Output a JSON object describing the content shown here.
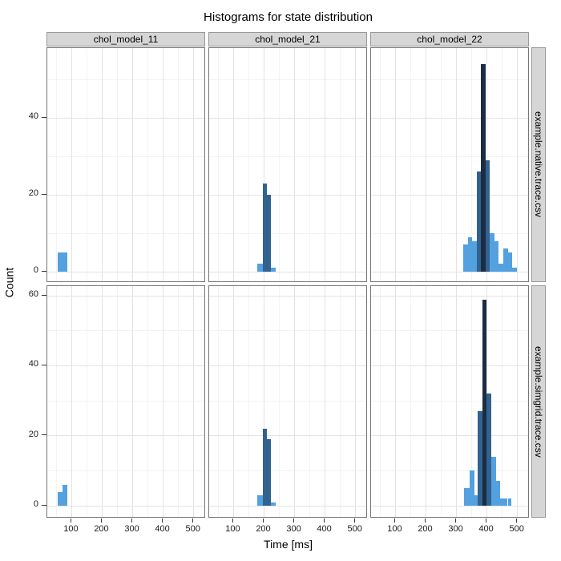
{
  "chart_data": {
    "type": "histogram",
    "title": "Histograms for state distribution",
    "xlabel": "Time [ms]",
    "ylabel": "Count",
    "col_facets": [
      "chol_model_11",
      "chol_model_21",
      "chol_model_22"
    ],
    "row_facets": [
      "example.native.trace.csv",
      "example.simgrid.trace.csv"
    ],
    "x_domain": [
      20,
      535
    ],
    "x_ticks": [
      100,
      200,
      300,
      400,
      500
    ],
    "x_minor_ticks": [
      50,
      150,
      250,
      350,
      450
    ],
    "rows": [
      {
        "y_domain": [
          -2.5,
          58.2
        ],
        "y_ticks": [
          0,
          20,
          40
        ],
        "y_minor_ticks": [
          10,
          30,
          50
        ]
      },
      {
        "y_domain": [
          -3.2,
          62.8
        ],
        "y_ticks": [
          0,
          20,
          40,
          60
        ],
        "y_minor_ticks": [
          10,
          30,
          50
        ]
      }
    ],
    "colors": {
      "light": "#54a1e0",
      "dark": "#32628f",
      "navy": "#1b2d42",
      "grid_major": "#e3e3e3",
      "grid_minor": "#f3f3f3",
      "panel_border": "#767676",
      "strip_fill": "#d6d6d6",
      "strip_border": "#999999",
      "tick": "#333333"
    },
    "panels": [
      {
        "row": 0,
        "col": 0,
        "bars": [
          {
            "x0": 54,
            "x1": 69,
            "count": 5,
            "color": "light"
          },
          {
            "x0": 69,
            "x1": 85,
            "count": 5,
            "color": "light"
          }
        ]
      },
      {
        "row": 0,
        "col": 1,
        "bars": [
          {
            "x0": 177,
            "x1": 195,
            "count": 2,
            "color": "light"
          },
          {
            "x0": 195,
            "x1": 210,
            "count": 23,
            "color": "dark"
          },
          {
            "x0": 210,
            "x1": 223,
            "count": 20,
            "color": "dark"
          },
          {
            "x0": 223,
            "x1": 239,
            "count": 1,
            "color": "light"
          }
        ]
      },
      {
        "row": 0,
        "col": 2,
        "bars": [
          {
            "x0": 322,
            "x1": 337,
            "count": 7,
            "color": "light"
          },
          {
            "x0": 337,
            "x1": 351,
            "count": 9,
            "color": "light"
          },
          {
            "x0": 351,
            "x1": 366,
            "count": 8,
            "color": "light"
          },
          {
            "x0": 366,
            "x1": 380,
            "count": 26,
            "color": "dark"
          },
          {
            "x0": 380,
            "x1": 395,
            "count": 54,
            "color": "navy"
          },
          {
            "x0": 395,
            "x1": 410,
            "count": 29,
            "color": "dark"
          },
          {
            "x0": 410,
            "x1": 424,
            "count": 10,
            "color": "light"
          },
          {
            "x0": 424,
            "x1": 439,
            "count": 8,
            "color": "light"
          },
          {
            "x0": 439,
            "x1": 454,
            "count": 2,
            "color": "light"
          },
          {
            "x0": 454,
            "x1": 468,
            "count": 6,
            "color": "light"
          },
          {
            "x0": 468,
            "x1": 483,
            "count": 5,
            "color": "light"
          },
          {
            "x0": 483,
            "x1": 497,
            "count": 1,
            "color": "light"
          }
        ]
      },
      {
        "row": 1,
        "col": 0,
        "bars": [
          {
            "x0": 54,
            "x1": 69,
            "count": 4,
            "color": "light"
          },
          {
            "x0": 69,
            "x1": 85,
            "count": 6,
            "color": "light"
          }
        ]
      },
      {
        "row": 1,
        "col": 1,
        "bars": [
          {
            "x0": 177,
            "x1": 195,
            "count": 3,
            "color": "light"
          },
          {
            "x0": 195,
            "x1": 210,
            "count": 22,
            "color": "dark"
          },
          {
            "x0": 210,
            "x1": 223,
            "count": 19,
            "color": "dark"
          },
          {
            "x0": 223,
            "x1": 239,
            "count": 1,
            "color": "light"
          }
        ]
      },
      {
        "row": 1,
        "col": 2,
        "bars": [
          {
            "x0": 325,
            "x1": 343,
            "count": 5,
            "color": "light"
          },
          {
            "x0": 343,
            "x1": 358,
            "count": 10,
            "color": "light"
          },
          {
            "x0": 358,
            "x1": 369,
            "count": 3,
            "color": "light"
          },
          {
            "x0": 369,
            "x1": 384,
            "count": 27,
            "color": "dark"
          },
          {
            "x0": 384,
            "x1": 398,
            "count": 59,
            "color": "navy"
          },
          {
            "x0": 398,
            "x1": 414,
            "count": 32,
            "color": "dark"
          },
          {
            "x0": 414,
            "x1": 429,
            "count": 14,
            "color": "light"
          },
          {
            "x0": 429,
            "x1": 442,
            "count": 7,
            "color": "light"
          },
          {
            "x0": 442,
            "x1": 455,
            "count": 2,
            "color": "light"
          },
          {
            "x0": 455,
            "x1": 468,
            "count": 2,
            "color": "light"
          },
          {
            "x0": 468,
            "x1": 479,
            "count": 2,
            "color": "light"
          }
        ]
      }
    ]
  }
}
